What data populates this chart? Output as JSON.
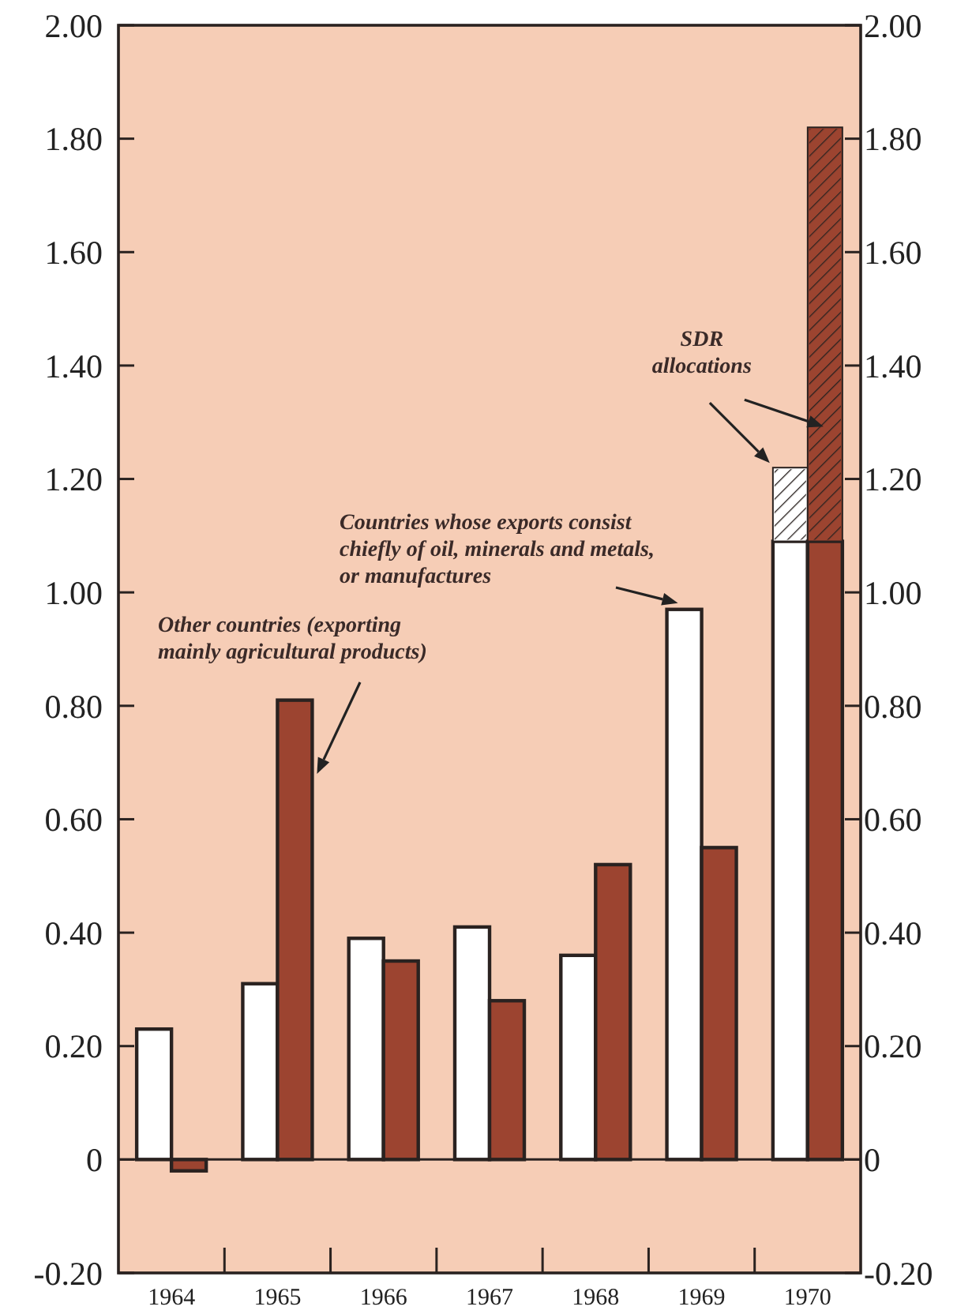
{
  "chart_data": {
    "type": "bar",
    "categories": [
      "1964",
      "1965",
      "1966",
      "1967",
      "1968",
      "1969",
      "1970"
    ],
    "series": [
      {
        "name": "Countries whose exports consist chiefly of oil, minerals and metals, or manufactures",
        "color": "#ffffff",
        "values": [
          0.23,
          0.31,
          0.39,
          0.41,
          0.36,
          0.97,
          1.09
        ]
      },
      {
        "color": "#ffffff",
        "base": [
          null,
          null,
          null,
          null,
          null,
          null,
          1.09
        ],
        "values": [
          null,
          null,
          null,
          null,
          null,
          null,
          0.13
        ]
      },
      {
        "name": "Other countries (exporting mainly agricultural products)",
        "color": "#9c4430",
        "values": [
          -0.02,
          0.81,
          0.35,
          0.28,
          0.52,
          0.55,
          1.09
        ]
      },
      {
        "color": "#9c4430",
        "base": [
          null,
          null,
          null,
          null,
          null,
          null,
          1.09
        ],
        "values": [
          null,
          null,
          null,
          null,
          null,
          null,
          0.73
        ]
      }
    ],
    "annotations": [
      "SDR allocations"
    ],
    "ylim": [
      -0.2,
      2.0
    ],
    "yticks": [
      {
        "value": -0.2,
        "label": "-0.20"
      },
      0,
      {
        "value": 0.2,
        "label": "0.20"
      },
      {
        "value": 0.4,
        "label": "0.40"
      },
      {
        "value": 0.6,
        "label": "0.60"
      },
      {
        "value": 0.8,
        "label": "0.80"
      },
      {
        "value": 1.0,
        "label": "1.00"
      },
      {
        "value": 1.2,
        "label": "1.20"
      },
      {
        "value": 1.4,
        "label": "1.40"
      },
      {
        "value": 1.6,
        "label": "1.60"
      },
      {
        "value": 1.8,
        "label": "1.80"
      },
      {
        "value": 2.0,
        "label": "2.00"
      }
    ],
    "y2lim": [
      -0.2,
      2.0
    ],
    "y2ticks": [
      {
        "value": -0.2,
        "label": "-0.20"
      },
      0,
      {
        "value": 0.2,
        "label": "0.20"
      },
      {
        "value": 0.4,
        "label": "0.40"
      },
      {
        "value": 0.6,
        "label": "0.60"
      },
      {
        "value": 0.8,
        "label": "0.80"
      },
      {
        "value": 1.0,
        "label": "1.00"
      },
      {
        "value": 1.2,
        "label": "1.20"
      },
      {
        "value": 1.4,
        "label": "1.40"
      },
      {
        "value": 1.6,
        "label": "1.60"
      },
      {
        "value": 1.8,
        "label": "1.80"
      },
      {
        "value": 2.0,
        "label": "2.00"
      }
    ],
    "y2label": null
  }
}
